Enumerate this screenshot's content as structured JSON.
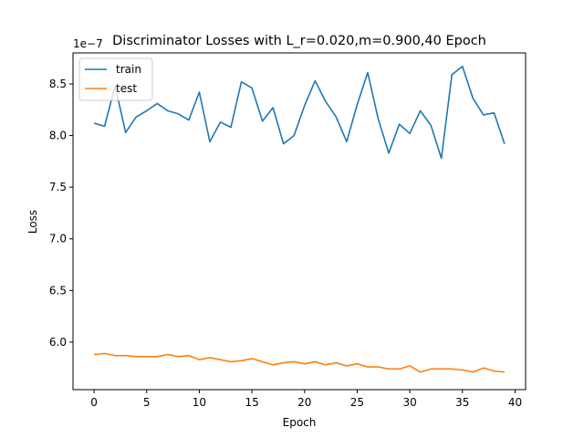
{
  "chart_data": {
    "type": "line",
    "title": "Discriminator Losses with L_r=0.020,m=0.900,40 Epoch",
    "xlabel": "Epoch",
    "ylabel": "Loss",
    "offset_text": "1e−7",
    "xlim": [
      -2,
      41
    ],
    "ylim": [
      5.54,
      8.8
    ],
    "xticks": [
      0,
      5,
      10,
      15,
      20,
      25,
      30,
      35,
      40
    ],
    "yticks": [
      6.0,
      6.5,
      7.0,
      7.5,
      8.0,
      8.5
    ],
    "legend_position": "top-left",
    "x": [
      0,
      1,
      2,
      3,
      4,
      5,
      6,
      7,
      8,
      9,
      10,
      11,
      12,
      13,
      14,
      15,
      16,
      17,
      18,
      19,
      20,
      21,
      22,
      23,
      24,
      25,
      26,
      27,
      28,
      29,
      30,
      31,
      32,
      33,
      34,
      35,
      36,
      37,
      38,
      39
    ],
    "series": [
      {
        "name": "train",
        "color": "#1f77b4",
        "values": [
          8.12,
          8.09,
          8.48,
          8.03,
          8.18,
          8.24,
          8.31,
          8.24,
          8.21,
          8.15,
          8.42,
          7.94,
          8.13,
          8.08,
          8.52,
          8.46,
          8.14,
          8.27,
          7.92,
          8.0,
          8.29,
          8.53,
          8.33,
          8.18,
          7.94,
          8.3,
          8.61,
          8.16,
          7.83,
          8.11,
          8.02,
          8.24,
          8.1,
          7.78,
          8.59,
          8.67,
          8.36,
          8.2,
          8.22,
          7.92
        ]
      },
      {
        "name": "test",
        "color": "#ff7f0e",
        "values": [
          5.88,
          5.89,
          5.87,
          5.87,
          5.86,
          5.86,
          5.86,
          5.88,
          5.86,
          5.87,
          5.83,
          5.85,
          5.83,
          5.81,
          5.82,
          5.84,
          5.81,
          5.78,
          5.8,
          5.81,
          5.79,
          5.81,
          5.78,
          5.8,
          5.77,
          5.79,
          5.76,
          5.76,
          5.74,
          5.74,
          5.77,
          5.71,
          5.74,
          5.74,
          5.74,
          5.73,
          5.71,
          5.75,
          5.72,
          5.71
        ]
      }
    ]
  }
}
